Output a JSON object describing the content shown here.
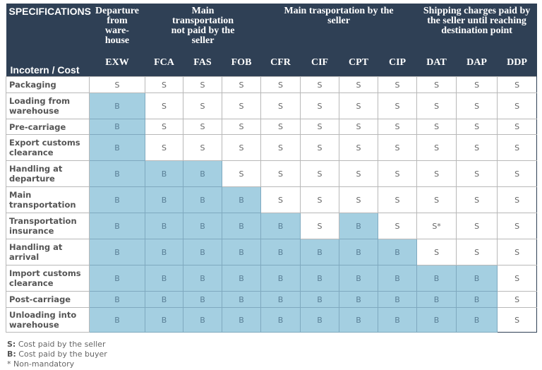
{
  "header": {
    "specifications": "SPECIFICATIONS",
    "row_label": "Incotern / Cost",
    "groups": [
      "Departure from ware-house",
      "Main transportation not paid by the seller",
      "Main trasportation by the seller",
      "Shipping charges paid by the seller until reaching destination point"
    ],
    "codes": [
      "EXW",
      "FCA",
      "FAS",
      "FOB",
      "CFR",
      "CIF",
      "CPT",
      "CIP",
      "DAT",
      "DAP",
      "DDP"
    ]
  },
  "rows": [
    {
      "label": "Packaging",
      "cells": [
        "S",
        "S",
        "S",
        "S",
        "S",
        "S",
        "S",
        "S",
        "S",
        "S",
        "S"
      ]
    },
    {
      "label": "Loading from warehouse",
      "cells": [
        "B",
        "S",
        "S",
        "S",
        "S",
        "S",
        "S",
        "S",
        "S",
        "S",
        "S"
      ]
    },
    {
      "label": "Pre-carriage",
      "cells": [
        "B",
        "S",
        "S",
        "S",
        "S",
        "S",
        "S",
        "S",
        "S",
        "S",
        "S"
      ]
    },
    {
      "label": "Export customs clearance",
      "cells": [
        "B",
        "S",
        "S",
        "S",
        "S",
        "S",
        "S",
        "S",
        "S",
        "S",
        "S"
      ]
    },
    {
      "label": "Handling at departure",
      "cells": [
        "B",
        "B",
        "B",
        "S",
        "S",
        "S",
        "S",
        "S",
        "S",
        "S",
        "S"
      ]
    },
    {
      "label": "Main transportation",
      "cells": [
        "B",
        "B",
        "B",
        "B",
        "S",
        "S",
        "S",
        "S",
        "S",
        "S",
        "S"
      ]
    },
    {
      "label": "Transportation insurance",
      "cells": [
        "B",
        "B",
        "B",
        "B",
        "B",
        "S",
        "B",
        "S",
        "S*",
        "S",
        "S"
      ]
    },
    {
      "label": "Handling at arrival",
      "cells": [
        "B",
        "B",
        "B",
        "B",
        "B",
        "B",
        "B",
        "B",
        "S",
        "S",
        "S"
      ]
    },
    {
      "label": "Import customs clearance",
      "cells": [
        "B",
        "B",
        "B",
        "B",
        "B",
        "B",
        "B",
        "B",
        "B",
        "B",
        "S"
      ]
    },
    {
      "label": "Post-carriage",
      "cells": [
        "B",
        "B",
        "B",
        "B",
        "B",
        "B",
        "B",
        "B",
        "B",
        "B",
        "S"
      ]
    },
    {
      "label": "Unloading into warehouse",
      "cells": [
        "B",
        "B",
        "B",
        "B",
        "B",
        "B",
        "B",
        "B",
        "B",
        "B",
        "S"
      ]
    }
  ],
  "legend": [
    {
      "key": "S:",
      "text": " Cost paid by the seller"
    },
    {
      "key": "B:",
      "text": " Cost paid by the buyer"
    },
    {
      "key": "",
      "text": "* Non-mandatory"
    }
  ],
  "colors": {
    "header": "#2f4055",
    "buyer_cell": "#a4cfe1"
  }
}
